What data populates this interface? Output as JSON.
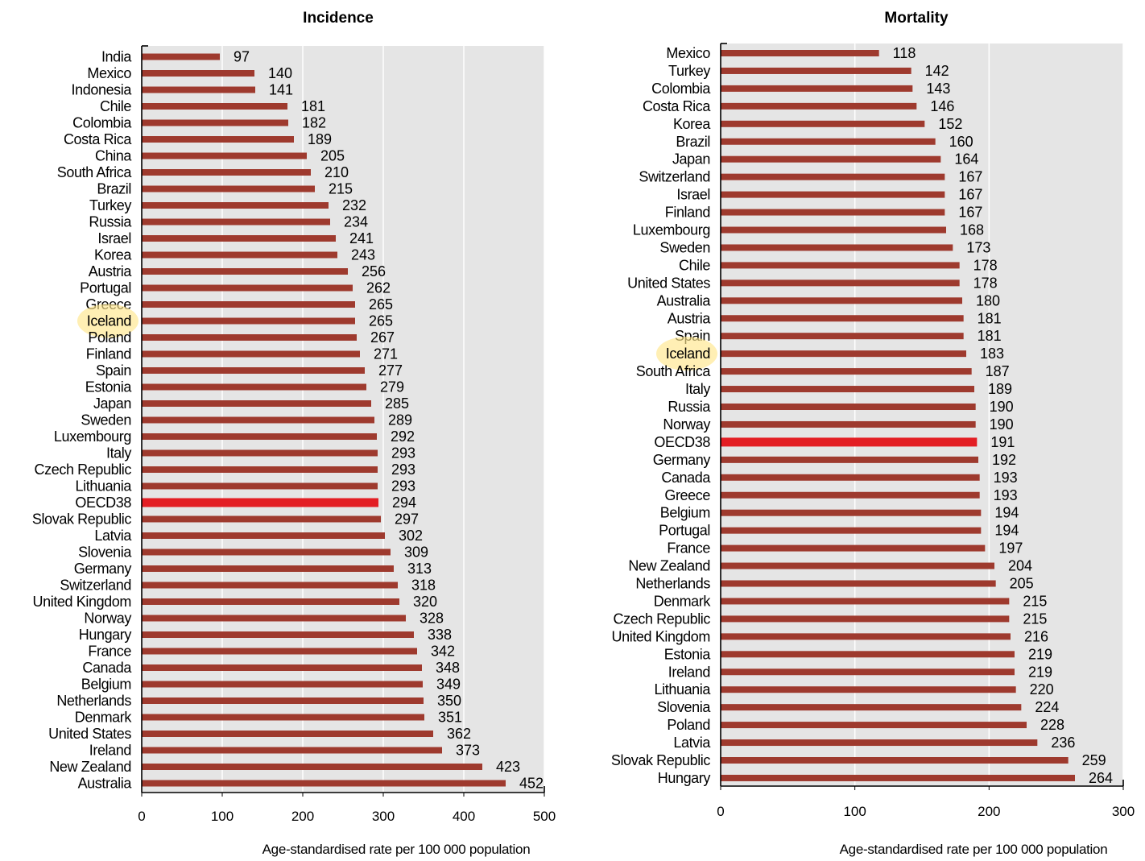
{
  "colors": {
    "bar": "#9e3a2e",
    "highlight_bar": "#e31e24",
    "plot_background": "#e5e5e5",
    "gridline": "#ffffff",
    "label_highlight": "#ffe68c"
  },
  "chart_data": [
    {
      "type": "bar",
      "orientation": "horizontal",
      "title": "Incidence",
      "xlabel": "Age-standardised rate per 100 000 population",
      "xlim": [
        0,
        500
      ],
      "xticks": [
        0,
        100,
        200,
        300,
        400,
        500
      ],
      "grid": true,
      "highlighted_bar": "OECD38",
      "highlighted_label": "Iceland",
      "categories": [
        "India",
        "Mexico",
        "Indonesia",
        "Chile",
        "Colombia",
        "Costa Rica",
        "China",
        "South Africa",
        "Brazil",
        "Turkey",
        "Russia",
        "Israel",
        "Korea",
        "Austria",
        "Portugal",
        "Greece",
        "Iceland",
        "Poland",
        "Finland",
        "Spain",
        "Estonia",
        "Japan",
        "Sweden",
        "Luxembourg",
        "Italy",
        "Czech Republic",
        "Lithuania",
        "OECD38",
        "Slovak Republic",
        "Latvia",
        "Slovenia",
        "Germany",
        "Switzerland",
        "United Kingdom",
        "Norway",
        "Hungary",
        "France",
        "Canada",
        "Belgium",
        "Netherlands",
        "Denmark",
        "United States",
        "Ireland",
        "New Zealand",
        "Australia"
      ],
      "values": [
        97,
        140,
        141,
        181,
        182,
        189,
        205,
        210,
        215,
        232,
        234,
        241,
        243,
        256,
        262,
        265,
        265,
        267,
        271,
        277,
        279,
        285,
        289,
        292,
        293,
        293,
        293,
        294,
        297,
        302,
        309,
        313,
        318,
        320,
        328,
        338,
        342,
        348,
        349,
        350,
        351,
        362,
        373,
        423,
        452
      ]
    },
    {
      "type": "bar",
      "orientation": "horizontal",
      "title": "Mortality",
      "xlabel": "Age-standardised rate per 100 000 population",
      "xlim": [
        0,
        300
      ],
      "xticks": [
        0,
        100,
        200,
        300
      ],
      "grid": true,
      "highlighted_bar": "OECD38",
      "highlighted_label": "Iceland",
      "categories": [
        "Mexico",
        "Turkey",
        "Colombia",
        "Costa Rica",
        "Korea",
        "Brazil",
        "Japan",
        "Switzerland",
        "Israel",
        "Finland",
        "Luxembourg",
        "Sweden",
        "Chile",
        "United States",
        "Australia",
        "Austria",
        "Spain",
        "Iceland",
        "South Africa",
        "Italy",
        "Russia",
        "Norway",
        "OECD38",
        "Germany",
        "Canada",
        "Greece",
        "Belgium",
        "Portugal",
        "France",
        "New Zealand",
        "Netherlands",
        "Denmark",
        "Czech Republic",
        "United Kingdom",
        "Estonia",
        "Ireland",
        "Lithuania",
        "Slovenia",
        "Poland",
        "Latvia",
        "Slovak Republic",
        "Hungary"
      ],
      "values": [
        118,
        142,
        143,
        146,
        152,
        160,
        164,
        167,
        167,
        167,
        168,
        173,
        178,
        178,
        180,
        181,
        181,
        183,
        187,
        189,
        190,
        190,
        191,
        192,
        193,
        193,
        194,
        194,
        197,
        204,
        205,
        215,
        215,
        216,
        219,
        219,
        220,
        224,
        228,
        236,
        259,
        264
      ]
    }
  ]
}
